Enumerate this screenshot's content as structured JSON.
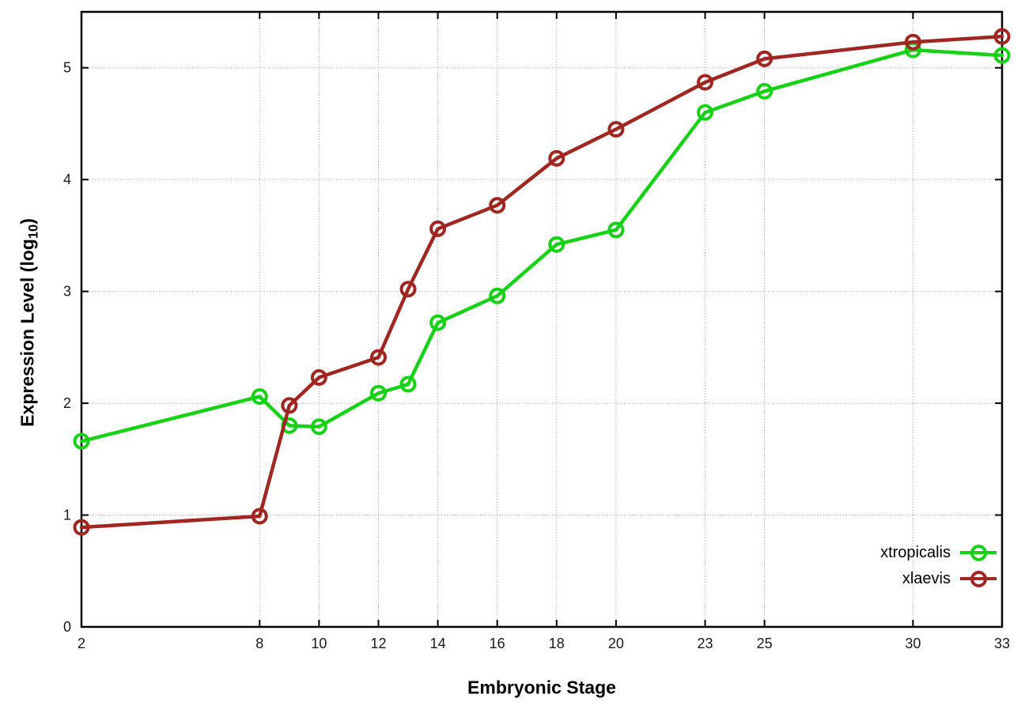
{
  "chart_data": {
    "type": "line",
    "title": "",
    "xlabel": "Embryonic Stage",
    "ylabel": "Expression Level (log10)",
    "ylabel_prefix": "Expression Level (log",
    "ylabel_subscript": "10",
    "ylabel_suffix": ")",
    "x": [
      2,
      8,
      9,
      10,
      12,
      13,
      14,
      16,
      18,
      20,
      23,
      25,
      30,
      33
    ],
    "x_tick_labels": [
      2,
      8,
      10,
      12,
      14,
      16,
      18,
      20,
      23,
      25,
      30,
      33
    ],
    "y_ticks": [
      0,
      1,
      2,
      3,
      4,
      5
    ],
    "xlim": [
      2,
      33
    ],
    "ylim": [
      0,
      5.5
    ],
    "grid": true,
    "legend_position": "bottom-right-inside",
    "frame_color": "#000000",
    "grid_color": "#9a9a9a",
    "tick_label_color": "#1a1a1a",
    "series": [
      {
        "name": "xtropicalis",
        "color": "#17d117",
        "values": [
          1.66,
          2.06,
          1.8,
          1.79,
          2.09,
          2.17,
          2.72,
          2.96,
          3.42,
          3.55,
          4.6,
          4.79,
          5.16,
          5.11
        ]
      },
      {
        "name": "xlaevis",
        "color": "#9f2621",
        "values": [
          0.89,
          0.99,
          1.98,
          2.23,
          2.41,
          3.02,
          3.56,
          3.77,
          4.19,
          4.45,
          4.87,
          5.08,
          5.23,
          5.28
        ]
      }
    ]
  }
}
